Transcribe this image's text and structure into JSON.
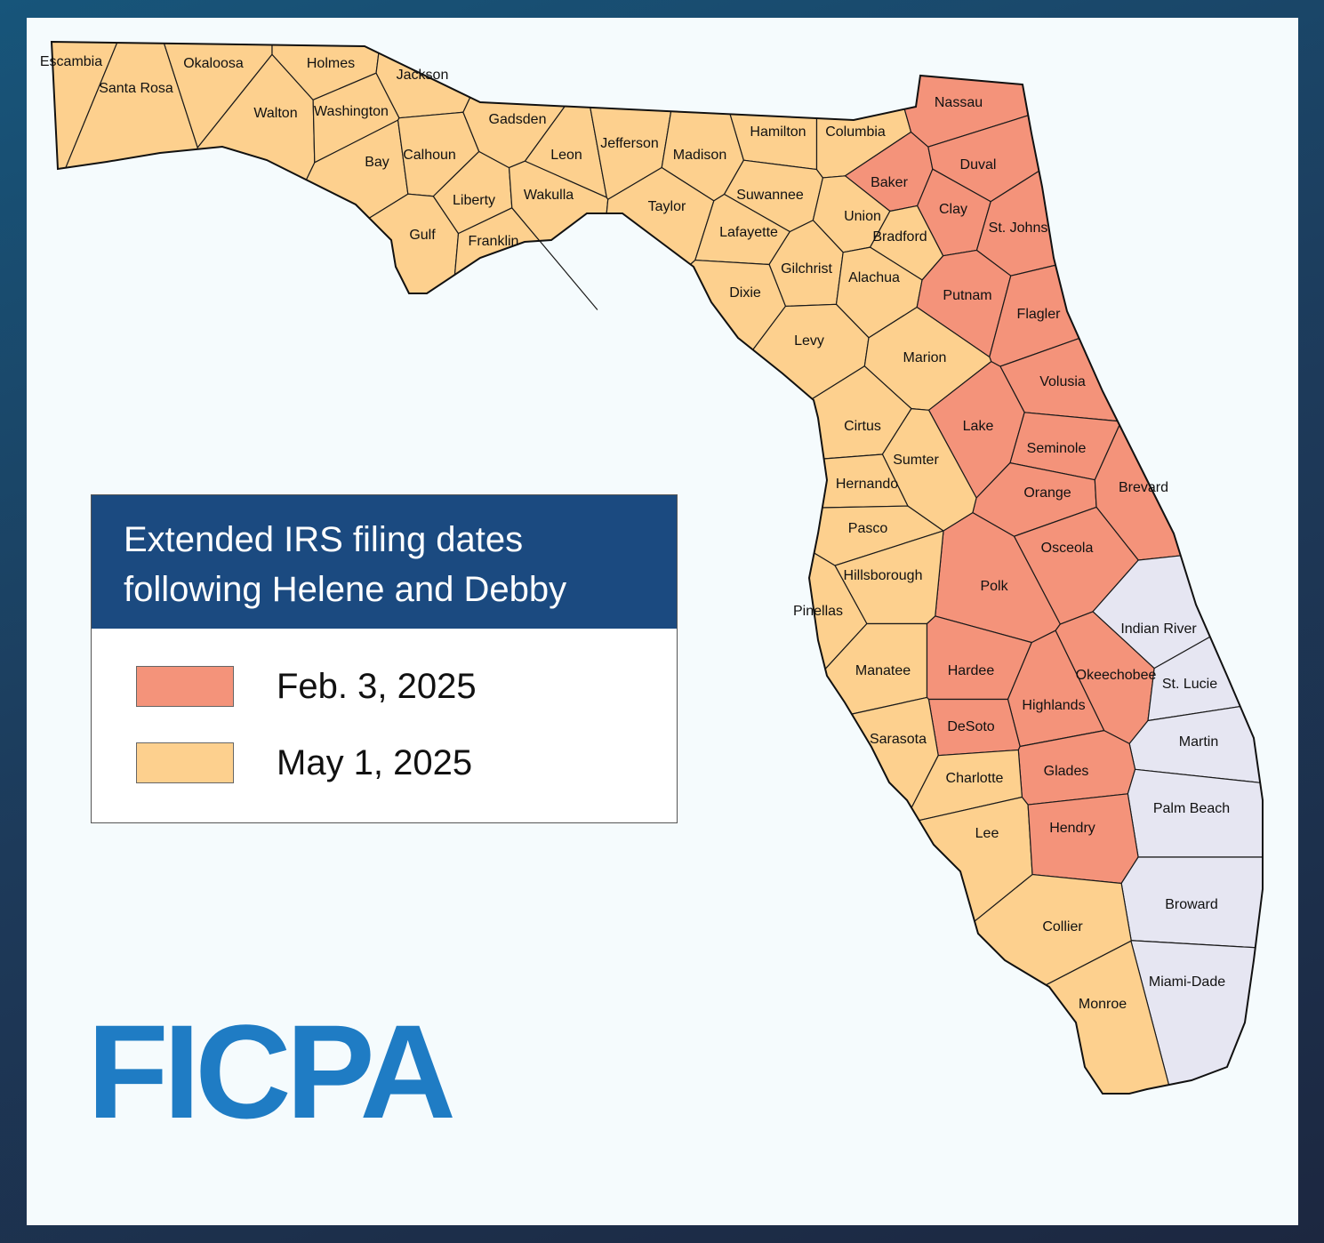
{
  "legend": {
    "title": "Extended IRS filing dates following Helene and Debby",
    "items": [
      {
        "label": "Feb. 3, 2025",
        "color": "#f4937a"
      },
      {
        "label": "May 1, 2025",
        "color": "#fdd08e"
      }
    ]
  },
  "logo": "FICPA",
  "counties": [
    {
      "name": "Escambia",
      "color": "#fdd08e"
    },
    {
      "name": "Santa Rosa",
      "color": "#fdd08e"
    },
    {
      "name": "Okaloosa",
      "color": "#fdd08e"
    },
    {
      "name": "Walton",
      "color": "#fdd08e"
    },
    {
      "name": "Holmes",
      "color": "#fdd08e"
    },
    {
      "name": "Washington",
      "color": "#fdd08e"
    },
    {
      "name": "Jackson",
      "color": "#fdd08e"
    },
    {
      "name": "Bay",
      "color": "#fdd08e"
    },
    {
      "name": "Calhoun",
      "color": "#fdd08e"
    },
    {
      "name": "Gulf",
      "color": "#fdd08e"
    },
    {
      "name": "Liberty",
      "color": "#fdd08e"
    },
    {
      "name": "Franklin",
      "color": "#fdd08e"
    },
    {
      "name": "Gadsden",
      "color": "#fdd08e"
    },
    {
      "name": "Leon",
      "color": "#fdd08e"
    },
    {
      "name": "Wakulla",
      "color": "#fdd08e"
    },
    {
      "name": "Jefferson",
      "color": "#fdd08e"
    },
    {
      "name": "Madison",
      "color": "#fdd08e"
    },
    {
      "name": "Taylor",
      "color": "#fdd08e"
    },
    {
      "name": "Hamilton",
      "color": "#fdd08e"
    },
    {
      "name": "Suwannee",
      "color": "#fdd08e"
    },
    {
      "name": "Lafayette",
      "color": "#fdd08e"
    },
    {
      "name": "Columbia",
      "color": "#fdd08e"
    },
    {
      "name": "Baker",
      "color": "#f4937a"
    },
    {
      "name": "Union",
      "color": "#fdd08e"
    },
    {
      "name": "Bradford",
      "color": "#fdd08e"
    },
    {
      "name": "Nassau",
      "color": "#f4937a"
    },
    {
      "name": "Duval",
      "color": "#f4937a"
    },
    {
      "name": "Clay",
      "color": "#f4937a"
    },
    {
      "name": "St. Johns",
      "color": "#f4937a"
    },
    {
      "name": "Gilchrist",
      "color": "#fdd08e"
    },
    {
      "name": "Dixie",
      "color": "#fdd08e"
    },
    {
      "name": "Alachua",
      "color": "#fdd08e"
    },
    {
      "name": "Putnam",
      "color": "#f4937a"
    },
    {
      "name": "Flagler",
      "color": "#f4937a"
    },
    {
      "name": "Levy",
      "color": "#fdd08e"
    },
    {
      "name": "Marion",
      "color": "#fdd08e"
    },
    {
      "name": "Volusia",
      "color": "#f4937a"
    },
    {
      "name": "Cirtus",
      "color": "#fdd08e"
    },
    {
      "name": "Lake",
      "color": "#f4937a"
    },
    {
      "name": "Sumter",
      "color": "#fdd08e"
    },
    {
      "name": "Seminole",
      "color": "#f4937a"
    },
    {
      "name": "Hernando",
      "color": "#fdd08e"
    },
    {
      "name": "Orange",
      "color": "#f4937a"
    },
    {
      "name": "Brevard",
      "color": "#f4937a"
    },
    {
      "name": "Pasco",
      "color": "#fdd08e"
    },
    {
      "name": "Osceola",
      "color": "#f4937a"
    },
    {
      "name": "Polk",
      "color": "#f4937a"
    },
    {
      "name": "Hillsborough",
      "color": "#fdd08e"
    },
    {
      "name": "Pinellas",
      "color": "#fdd08e"
    },
    {
      "name": "Indian River",
      "color": "#e6e6f2"
    },
    {
      "name": "Manatee",
      "color": "#fdd08e"
    },
    {
      "name": "Hardee",
      "color": "#f4937a"
    },
    {
      "name": "Okeechobee",
      "color": "#f4937a"
    },
    {
      "name": "St. Lucie",
      "color": "#e6e6f2"
    },
    {
      "name": "Highlands",
      "color": "#f4937a"
    },
    {
      "name": "DeSoto",
      "color": "#f4937a"
    },
    {
      "name": "Sarasota",
      "color": "#fdd08e"
    },
    {
      "name": "Martin",
      "color": "#e6e6f2"
    },
    {
      "name": "Glades",
      "color": "#f4937a"
    },
    {
      "name": "Charlotte",
      "color": "#fdd08e"
    },
    {
      "name": "Palm Beach",
      "color": "#e6e6f2"
    },
    {
      "name": "Lee",
      "color": "#fdd08e"
    },
    {
      "name": "Hendry",
      "color": "#f4937a"
    },
    {
      "name": "Broward",
      "color": "#e6e6f2"
    },
    {
      "name": "Collier",
      "color": "#fdd08e"
    },
    {
      "name": "Miami-Dade",
      "color": "#e6e6f2"
    },
    {
      "name": "Monroe",
      "color": "#fdd08e"
    }
  ]
}
